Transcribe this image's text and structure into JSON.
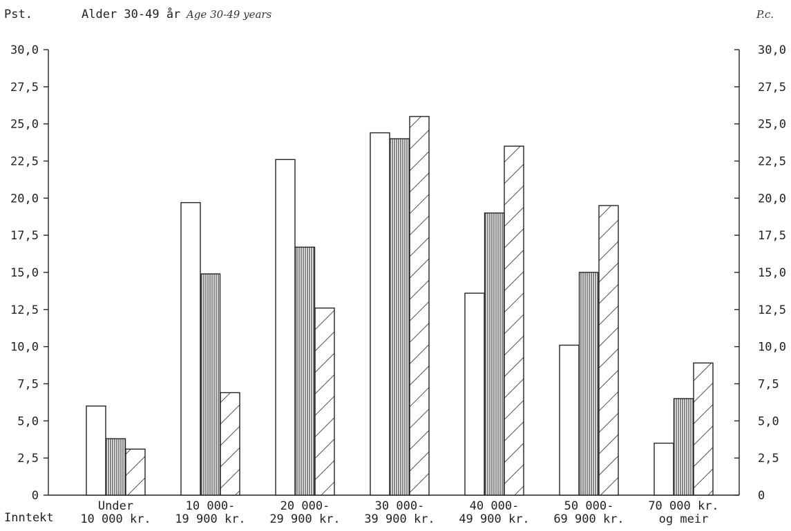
{
  "chart_data": {
    "type": "bar",
    "title": "Alder 30-49 år",
    "subtitle": "Age 30-49 years",
    "ylabel_left": "Pst.",
    "ylabel_right": "P.c.",
    "xlabel": "Inntekt",
    "ylim": [
      0,
      30
    ],
    "y_ticks": [
      "0",
      "2,5",
      "5,0",
      "7,5",
      "10,0",
      "12,5",
      "15,0",
      "17,5",
      "20,0",
      "22,5",
      "25,0",
      "27,5",
      "30,0"
    ],
    "y_ticks_right": [
      "0",
      "2,5",
      "5,0",
      "7,5",
      "10,0",
      "12,5",
      "15,0",
      "17,5",
      "20,0",
      "22,5",
      "25,0",
      "27,5",
      "30,0"
    ],
    "categories": [
      [
        "Under",
        "10 000 kr."
      ],
      [
        "10 000-",
        "19 900 kr."
      ],
      [
        "20 000-",
        "29 900 kr."
      ],
      [
        "30 000-",
        "39 900 kr."
      ],
      [
        "40 000-",
        "49 900 kr."
      ],
      [
        "50 000-",
        "69 900 kr."
      ],
      [
        "70 000 kr.",
        "og meir"
      ]
    ],
    "series": [
      {
        "pattern": "white",
        "values": [
          6.0,
          19.7,
          22.6,
          24.4,
          13.6,
          10.1,
          3.5
        ]
      },
      {
        "pattern": "vertical-lines",
        "values": [
          3.8,
          14.9,
          16.7,
          24.0,
          19.0,
          15.0,
          6.5
        ]
      },
      {
        "pattern": "diagonal-hatch",
        "values": [
          3.1,
          6.9,
          12.6,
          25.5,
          23.5,
          19.5,
          8.9
        ]
      }
    ],
    "grid": false,
    "legend": "none"
  }
}
